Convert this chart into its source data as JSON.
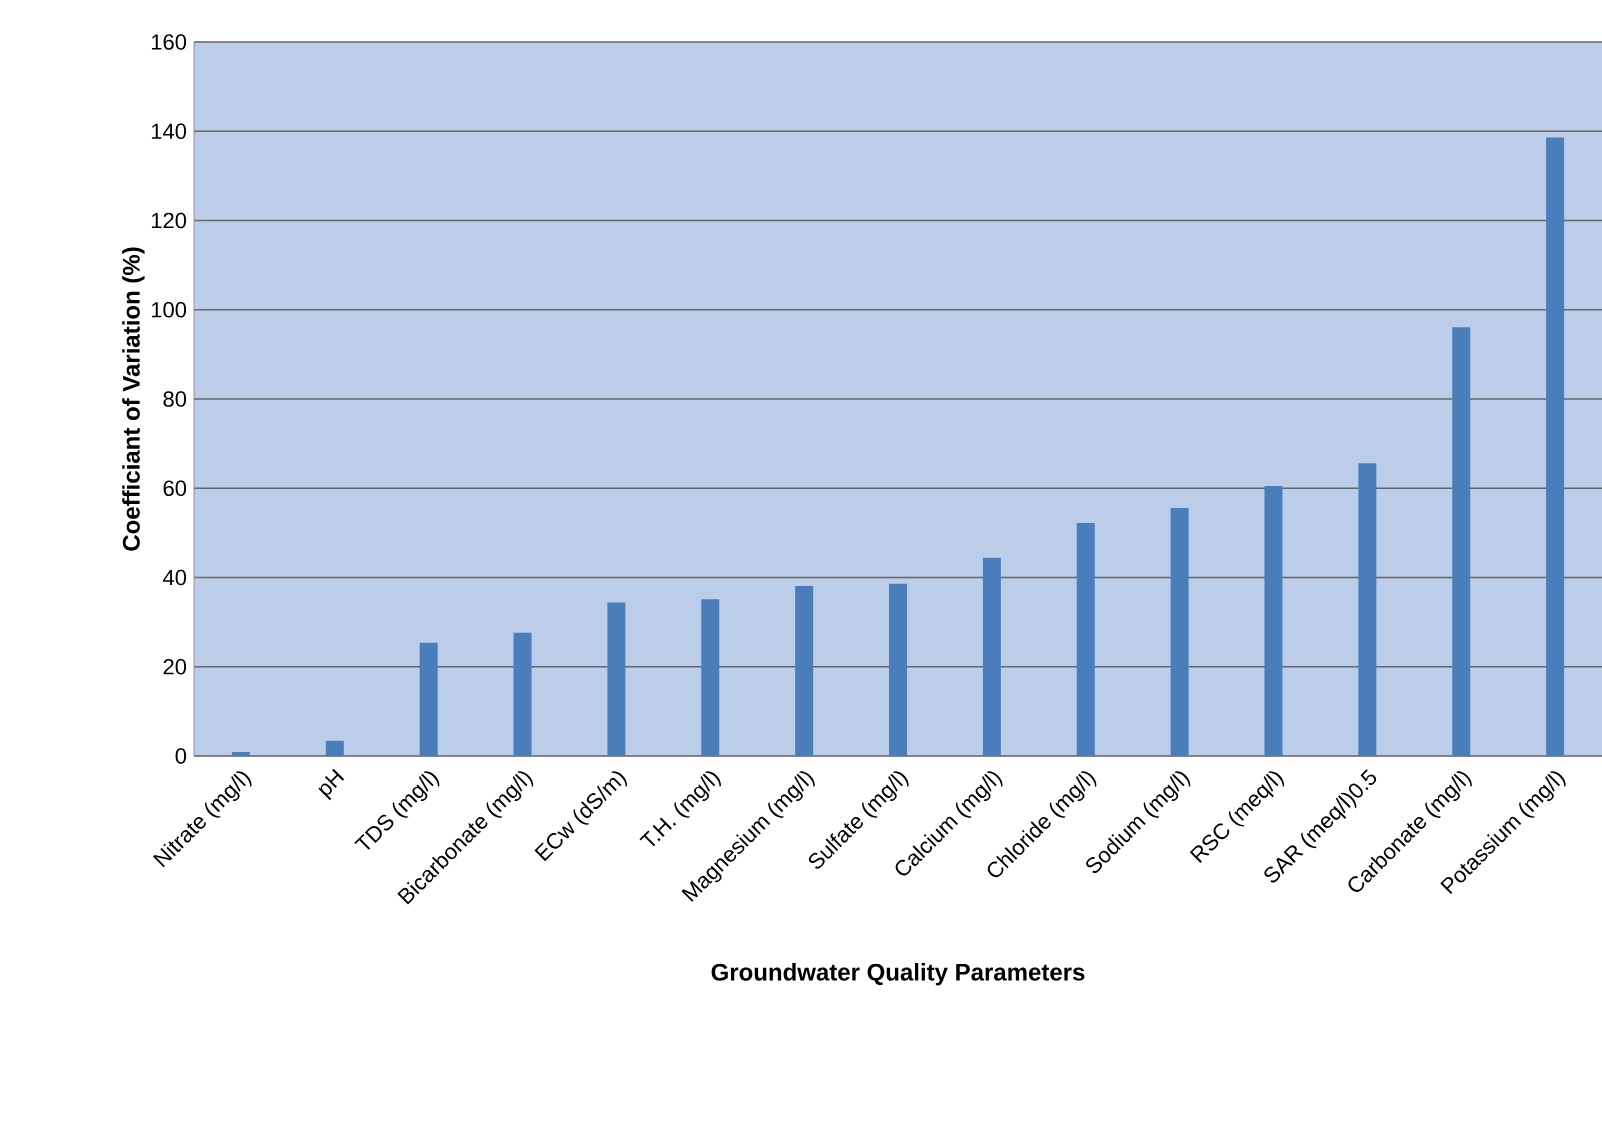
{
  "chart_data": {
    "type": "bar",
    "xlabel": "Groundwater Quality Parameters",
    "ylabel": "Coefficiant of Variation (%)",
    "categories": [
      "Nitrate (mg/l)",
      "pH",
      "TDS (mg/l)",
      "Bicarbonate (mg/l)",
      "ECw (dS/m)",
      "T.H.  (mg/l)",
      "Magnesium (mg/l)",
      "Sulfate (mg/l)",
      "Calcium (mg/l)",
      "Chloride (mg/l)",
      "Sodium (mg/l)",
      "RSC (meq/l)",
      "SAR (meq/l)0.5",
      "Carbonate (mg/l)",
      "Potassium (mg/l)"
    ],
    "values": [
      0.9,
      3.4,
      25.4,
      27.6,
      34.4,
      35.1,
      38.1,
      38.6,
      44.4,
      52.2,
      55.6,
      60.5,
      65.6,
      96.1,
      138.6
    ],
    "color": "#4a7ebb",
    "ylim": [
      0,
      160
    ],
    "yticks": [
      0,
      20,
      40,
      60,
      80,
      100,
      120,
      140,
      160
    ],
    "grid": "y"
  }
}
